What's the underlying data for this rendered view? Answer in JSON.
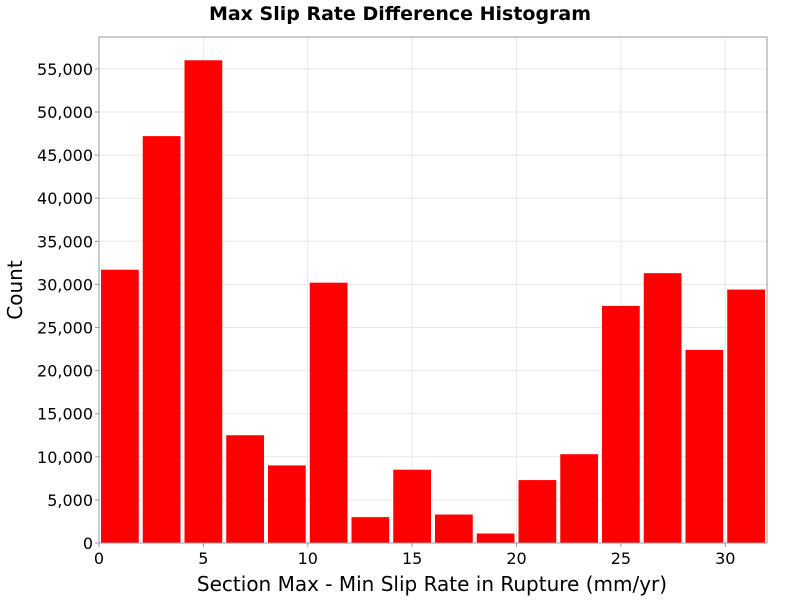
{
  "chart_data": {
    "type": "bar",
    "title": "Max Slip Rate Difference Histogram",
    "xlabel": "Section Max - Min Slip Rate in Rupture (mm/yr)",
    "ylabel": "Count",
    "bin_width": 2,
    "bins": [
      {
        "x0": 0,
        "x1": 2,
        "value": 31700
      },
      {
        "x0": 2,
        "x1": 4,
        "value": 47200
      },
      {
        "x0": 4,
        "x1": 6,
        "value": 56000
      },
      {
        "x0": 6,
        "x1": 8,
        "value": 12500
      },
      {
        "x0": 8,
        "x1": 10,
        "value": 9000
      },
      {
        "x0": 10,
        "x1": 12,
        "value": 30200
      },
      {
        "x0": 12,
        "x1": 14,
        "value": 3000
      },
      {
        "x0": 14,
        "x1": 16,
        "value": 8500
      },
      {
        "x0": 16,
        "x1": 18,
        "value": 3300
      },
      {
        "x0": 18,
        "x1": 20,
        "value": 1100
      },
      {
        "x0": 20,
        "x1": 22,
        "value": 7300
      },
      {
        "x0": 22,
        "x1": 24,
        "value": 10300
      },
      {
        "x0": 24,
        "x1": 26,
        "value": 27500
      },
      {
        "x0": 26,
        "x1": 28,
        "value": 31300
      },
      {
        "x0": 28,
        "x1": 30,
        "value": 22400
      },
      {
        "x0": 30,
        "x1": 32,
        "value": 29400
      }
    ],
    "xlim": [
      0,
      32
    ],
    "ylim": [
      0,
      58700
    ],
    "x_ticks": [
      0,
      5,
      10,
      15,
      20,
      25,
      30
    ],
    "x_tick_labels": [
      "0",
      "5",
      "10",
      "15",
      "20",
      "25",
      "30"
    ],
    "y_ticks": [
      0,
      5000,
      10000,
      15000,
      20000,
      25000,
      30000,
      35000,
      40000,
      45000,
      50000,
      55000
    ],
    "y_tick_labels": [
      "0",
      "5,000",
      "10,000",
      "15,000",
      "20,000",
      "25,000",
      "30,000",
      "35,000",
      "40,000",
      "45,000",
      "50,000",
      "55,000"
    ],
    "grid": true,
    "bar_color": "#ff0000",
    "legend": "none"
  }
}
